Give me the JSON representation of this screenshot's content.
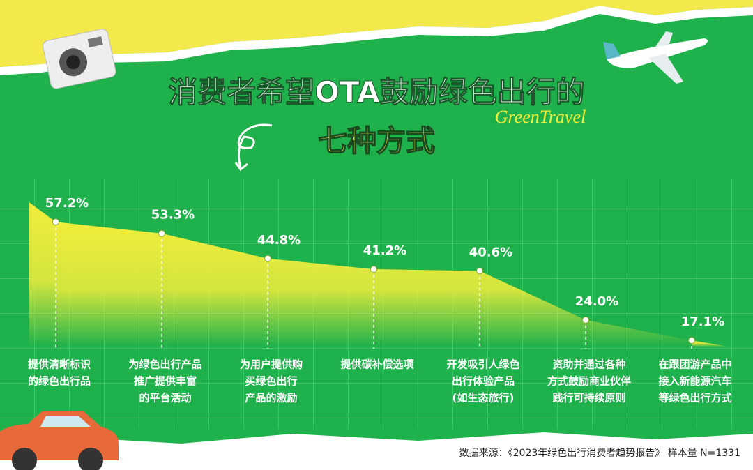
{
  "chart_data": {
    "type": "area",
    "title": "消费者希望OTA鼓励绿色出行的",
    "subtitle": "七种方式",
    "annotation": "GreenTravel",
    "source": "数据来源：《2023年绿色出行消费者趋势报告》 样本量 N=1331",
    "categories": [
      [
        "提供清晰标识",
        "的绿色出行品"
      ],
      [
        "为绿色出行产品",
        "推广提供丰富",
        "的平台活动"
      ],
      [
        "为用户提供购",
        "买绿色出行",
        "产品的激励"
      ],
      [
        "提供碳补偿选项"
      ],
      [
        "开发吸引人绿色",
        "出行体验产品",
        "(如生态旅行)"
      ],
      [
        "资助并通过各种",
        "方式鼓励商业伙伴",
        "践行可持续原则"
      ],
      [
        "在跟团游产品中",
        "接入新能源汽车",
        "等绿色出行方式"
      ]
    ],
    "values": [
      57.2,
      53.3,
      44.8,
      41.2,
      40.6,
      24.0,
      17.1
    ],
    "value_labels": [
      "57.2%",
      "53.3%",
      "44.8%",
      "41.2%",
      "40.6%",
      "24.0%",
      "17.1%"
    ],
    "ylim": [
      15,
      70
    ],
    "color": "#f2ee3c"
  }
}
